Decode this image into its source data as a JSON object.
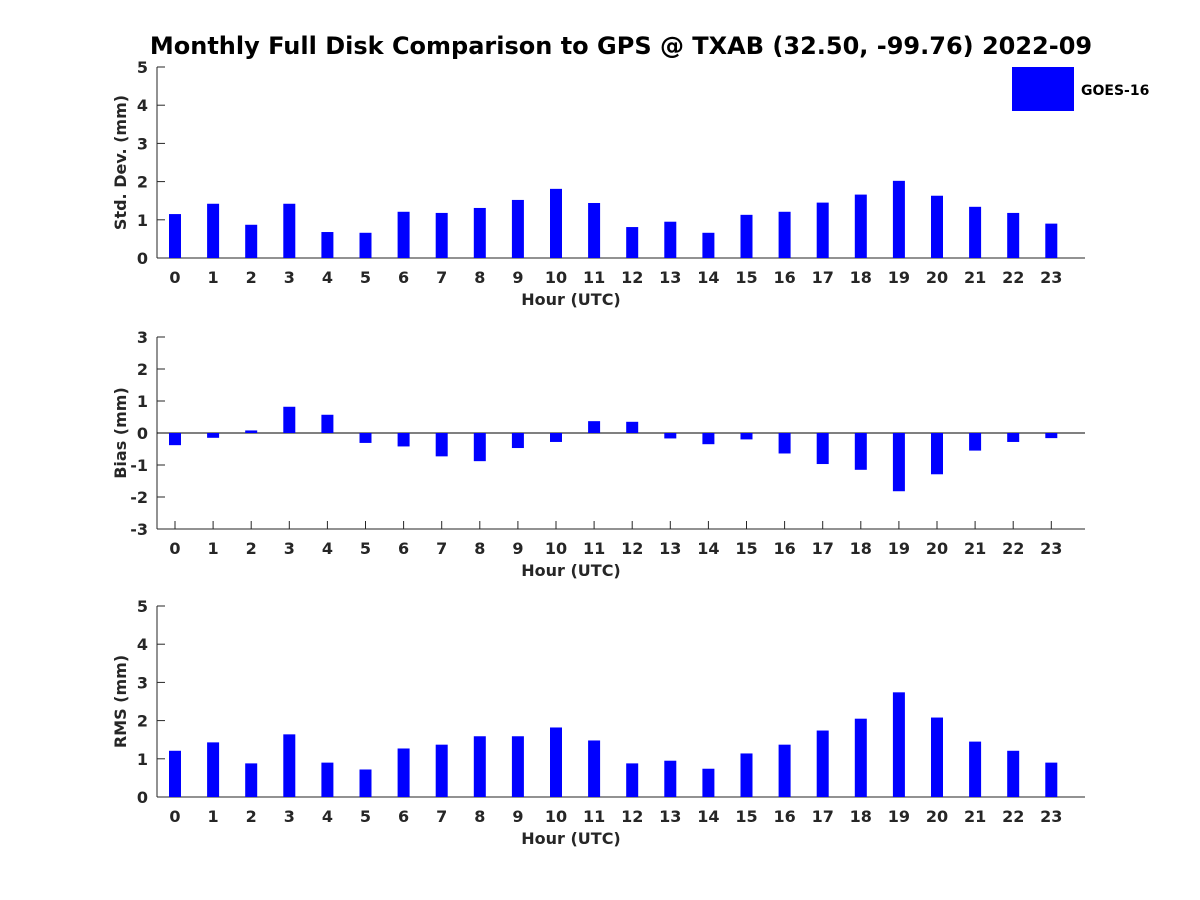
{
  "title": "Monthly Full Disk Comparison to GPS @ TXAB (32.50, -99.76) 2022-09",
  "legend": {
    "label": "GOES-16",
    "color": "#0000ff"
  },
  "chart_data": [
    {
      "type": "bar",
      "name": "stddev",
      "ylabel": "Std. Dev. (mm)",
      "xlabel": "Hour (UTC)",
      "ylim": [
        0,
        5
      ],
      "yticks": [
        0,
        1,
        2,
        3,
        4,
        5
      ],
      "categories": [
        "0",
        "1",
        "2",
        "3",
        "4",
        "5",
        "6",
        "7",
        "8",
        "9",
        "10",
        "11",
        "12",
        "13",
        "14",
        "15",
        "16",
        "17",
        "18",
        "19",
        "20",
        "21",
        "22",
        "23"
      ],
      "series": [
        {
          "name": "GOES-16",
          "values": [
            1.15,
            1.42,
            0.87,
            1.42,
            0.68,
            0.66,
            1.21,
            1.18,
            1.31,
            1.52,
            1.81,
            1.44,
            0.81,
            0.95,
            0.66,
            1.13,
            1.21,
            1.45,
            1.66,
            2.02,
            1.63,
            1.34,
            1.18,
            0.9
          ]
        }
      ]
    },
    {
      "type": "bar",
      "name": "bias",
      "ylabel": "Bias (mm)",
      "xlabel": "Hour (UTC)",
      "ylim": [
        -3,
        3
      ],
      "yticks": [
        -3,
        -2,
        -1,
        0,
        1,
        2,
        3
      ],
      "categories": [
        "0",
        "1",
        "2",
        "3",
        "4",
        "5",
        "6",
        "7",
        "8",
        "9",
        "10",
        "11",
        "12",
        "13",
        "14",
        "15",
        "16",
        "17",
        "18",
        "19",
        "20",
        "21",
        "22",
        "23"
      ],
      "series": [
        {
          "name": "GOES-16",
          "values": [
            -0.38,
            -0.15,
            0.08,
            0.82,
            0.57,
            -0.31,
            -0.42,
            -0.73,
            -0.88,
            -0.47,
            -0.28,
            0.37,
            0.35,
            -0.17,
            -0.35,
            -0.2,
            -0.64,
            -0.97,
            -1.15,
            -1.82,
            -1.29,
            -0.55,
            -0.28,
            -0.16
          ]
        }
      ]
    },
    {
      "type": "bar",
      "name": "rms",
      "ylabel": "RMS (mm)",
      "xlabel": "Hour (UTC)",
      "ylim": [
        0,
        5
      ],
      "yticks": [
        0,
        1,
        2,
        3,
        4,
        5
      ],
      "categories": [
        "0",
        "1",
        "2",
        "3",
        "4",
        "5",
        "6",
        "7",
        "8",
        "9",
        "10",
        "11",
        "12",
        "13",
        "14",
        "15",
        "16",
        "17",
        "18",
        "19",
        "20",
        "21",
        "22",
        "23"
      ],
      "series": [
        {
          "name": "GOES-16",
          "values": [
            1.21,
            1.43,
            0.88,
            1.64,
            0.9,
            0.72,
            1.27,
            1.37,
            1.59,
            1.59,
            1.82,
            1.48,
            0.88,
            0.95,
            0.74,
            1.14,
            1.37,
            1.74,
            2.05,
            2.74,
            2.08,
            1.45,
            1.21,
            0.9
          ]
        }
      ]
    }
  ]
}
